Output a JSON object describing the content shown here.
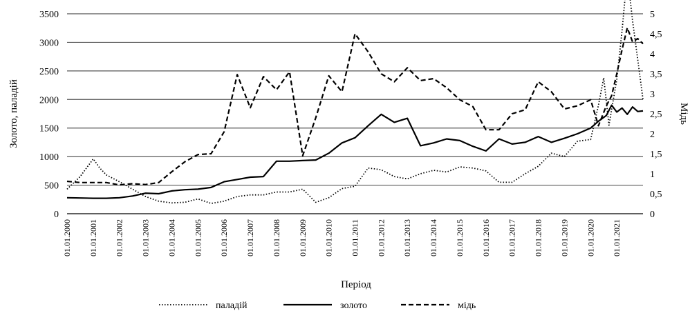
{
  "chart_data": {
    "type": "line",
    "xlabel": "Період",
    "ylabel_left": "Золото, паладій",
    "ylabel_right": "Мідь",
    "ylim_left": [
      0,
      3500
    ],
    "ylim_right": [
      0,
      5
    ],
    "yticks_left": [
      "0",
      "500",
      "1000",
      "1500",
      "2000",
      "2500",
      "3000",
      "3500"
    ],
    "yticks_right": [
      "0",
      "0,5",
      "1",
      "1,5",
      "2",
      "2,5",
      "3",
      "3,5",
      "4",
      "4,5",
      "5"
    ],
    "x_tick_labels": [
      "01.01.2000",
      "01.01.2001",
      "01.01.2002",
      "01.01.2003",
      "01.01.2004",
      "01.01.2005",
      "01.01.2006",
      "01.01.2007",
      "01.01.2008",
      "01.01.2009",
      "01.01.2010",
      "01.01.2011",
      "01.01.2012",
      "01.01.2013",
      "01.01.2014",
      "01.01.2015",
      "01.01.2016",
      "01.01.2017",
      "01.01.2018",
      "01.01.2019",
      "01.01.2020",
      "01.01.2021"
    ],
    "x_range": [
      2000.0,
      2022.0
    ],
    "grid": "horizontal",
    "legend_position": "bottom",
    "series": [
      {
        "name": "паладій",
        "axis": "left",
        "style": "dotted",
        "x": [
          2000.0,
          2000.5,
          2001.0,
          2001.25,
          2001.5,
          2002.0,
          2002.5,
          2003.0,
          2003.5,
          2004.0,
          2004.5,
          2005.0,
          2005.5,
          2006.0,
          2006.5,
          2007.0,
          2007.5,
          2008.0,
          2008.5,
          2009.0,
          2009.5,
          2010.0,
          2010.5,
          2011.0,
          2011.5,
          2012.0,
          2012.5,
          2013.0,
          2013.5,
          2014.0,
          2014.5,
          2015.0,
          2015.5,
          2016.0,
          2016.5,
          2017.0,
          2017.5,
          2018.0,
          2018.5,
          2019.0,
          2019.5,
          2020.0,
          2020.3,
          2020.5,
          2020.7,
          2021.0,
          2021.2,
          2021.4,
          2021.6,
          2021.8,
          2022.0
        ],
        "y": [
          430,
          650,
          960,
          800,
          680,
          560,
          430,
          300,
          220,
          190,
          200,
          260,
          180,
          220,
          300,
          330,
          330,
          380,
          380,
          430,
          200,
          280,
          440,
          480,
          800,
          770,
          650,
          610,
          700,
          760,
          730,
          820,
          800,
          750,
          550,
          550,
          700,
          830,
          1060,
          1000,
          1270,
          1300,
          1900,
          2380,
          1550,
          2350,
          3200,
          4200,
          3380,
          2700,
          2000
        ]
      },
      {
        "name": "золото",
        "axis": "left",
        "style": "solid",
        "x": [
          2000.0,
          2001.0,
          2001.5,
          2002.0,
          2002.5,
          2003.0,
          2003.5,
          2004.0,
          2004.5,
          2005.0,
          2005.5,
          2006.0,
          2006.5,
          2007.0,
          2007.5,
          2008.0,
          2008.5,
          2009.0,
          2009.5,
          2010.0,
          2010.5,
          2011.0,
          2011.5,
          2012.0,
          2012.5,
          2013.0,
          2013.5,
          2014.0,
          2014.5,
          2015.0,
          2015.5,
          2016.0,
          2016.5,
          2017.0,
          2017.5,
          2018.0,
          2018.5,
          2019.0,
          2019.5,
          2020.0,
          2020.3,
          2020.6,
          2020.8,
          2021.0,
          2021.2,
          2021.4,
          2021.6,
          2021.8,
          2022.0
        ],
        "y": [
          280,
          270,
          270,
          280,
          310,
          360,
          350,
          400,
          420,
          430,
          460,
          560,
          600,
          640,
          650,
          920,
          920,
          930,
          940,
          1060,
          1240,
          1330,
          1540,
          1740,
          1600,
          1670,
          1190,
          1240,
          1310,
          1280,
          1180,
          1100,
          1310,
          1220,
          1250,
          1350,
          1250,
          1320,
          1400,
          1500,
          1620,
          1720,
          1900,
          1780,
          1850,
          1740,
          1870,
          1790,
          1800
        ]
      },
      {
        "name": "мідь",
        "axis": "right",
        "style": "dashed",
        "x": [
          2000.0,
          2000.5,
          2001.0,
          2001.5,
          2002.0,
          2002.5,
          2003.0,
          2003.5,
          2004.0,
          2004.5,
          2005.0,
          2005.5,
          2006.0,
          2006.5,
          2007.0,
          2007.5,
          2008.0,
          2008.5,
          2009.0,
          2009.5,
          2010.0,
          2010.5,
          2011.0,
          2011.5,
          2012.0,
          2012.5,
          2013.0,
          2013.5,
          2014.0,
          2014.5,
          2015.0,
          2015.5,
          2016.0,
          2016.5,
          2017.0,
          2017.5,
          2018.0,
          2018.5,
          2019.0,
          2019.5,
          2020.0,
          2020.3,
          2020.6,
          2020.8,
          2021.0,
          2021.2,
          2021.4,
          2021.6,
          2021.8,
          2022.0
        ],
        "y": [
          0.81,
          0.78,
          0.78,
          0.78,
          0.72,
          0.75,
          0.73,
          0.78,
          1.05,
          1.3,
          1.48,
          1.5,
          2.05,
          3.48,
          2.65,
          3.43,
          3.1,
          3.55,
          1.45,
          2.4,
          3.45,
          3.05,
          4.5,
          4.05,
          3.5,
          3.3,
          3.65,
          3.33,
          3.38,
          3.15,
          2.85,
          2.68,
          2.1,
          2.1,
          2.5,
          2.6,
          3.3,
          3.05,
          2.62,
          2.7,
          2.85,
          2.2,
          2.7,
          2.95,
          3.5,
          4.1,
          4.65,
          4.3,
          4.38,
          4.25
        ]
      }
    ]
  }
}
